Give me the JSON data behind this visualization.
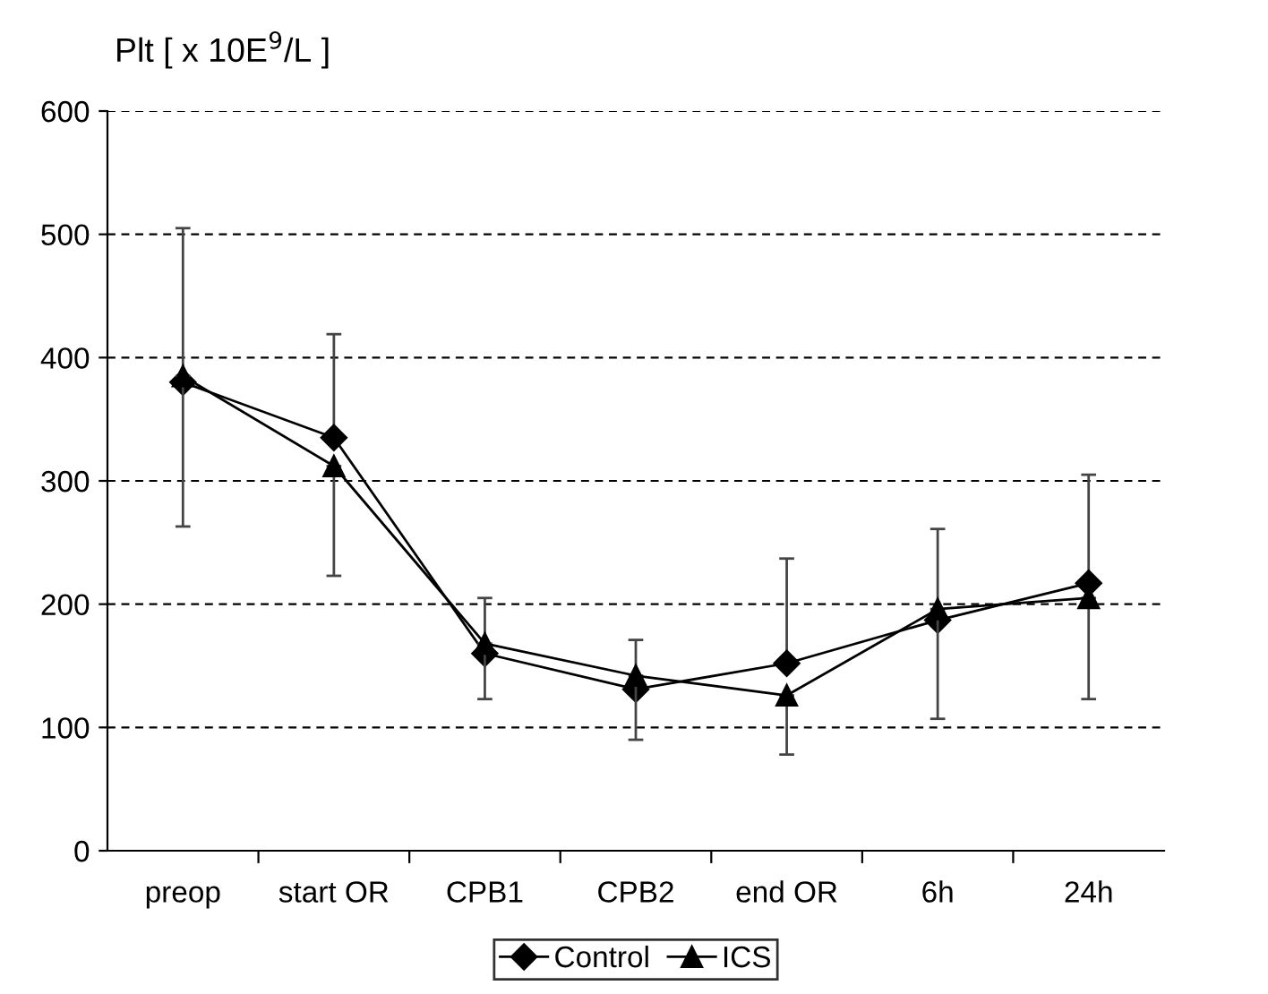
{
  "chart_data": {
    "type": "line",
    "ylabel": "Plt [ x 10E$^{9}$/L ]",
    "categories": [
      "preop",
      "start OR",
      "CPB1",
      "CPB2",
      "end OR",
      "6h",
      "24h"
    ],
    "series": [
      {
        "name": "Control",
        "color": "#000000",
        "marker": "diamond",
        "values": [
          380,
          335,
          160,
          131,
          152,
          187,
          217
        ],
        "errors": [
          [
            380,
            505
          ],
          [
            335,
            419
          ],
          [
            160,
            205
          ],
          [
            131,
            171
          ],
          [
            152,
            237
          ],
          [
            187,
            261
          ],
          [
            217,
            305
          ]
        ]
      },
      {
        "name": "ICS",
        "color": "#000000",
        "marker": "triangle",
        "values": [
          385,
          312,
          168,
          142,
          126,
          196,
          205
        ],
        "errors": [
          [
            263,
            385
          ],
          [
            223,
            312
          ],
          [
            123,
            168
          ],
          [
            90,
            142
          ],
          [
            78,
            126
          ],
          [
            107,
            196
          ],
          [
            123,
            205
          ]
        ]
      }
    ],
    "ylim": [
      0,
      600
    ],
    "yticks": [
      0,
      100,
      200,
      300,
      400,
      500,
      600
    ],
    "grid": "y",
    "legend": "bottom",
    "line_style": "solid"
  }
}
